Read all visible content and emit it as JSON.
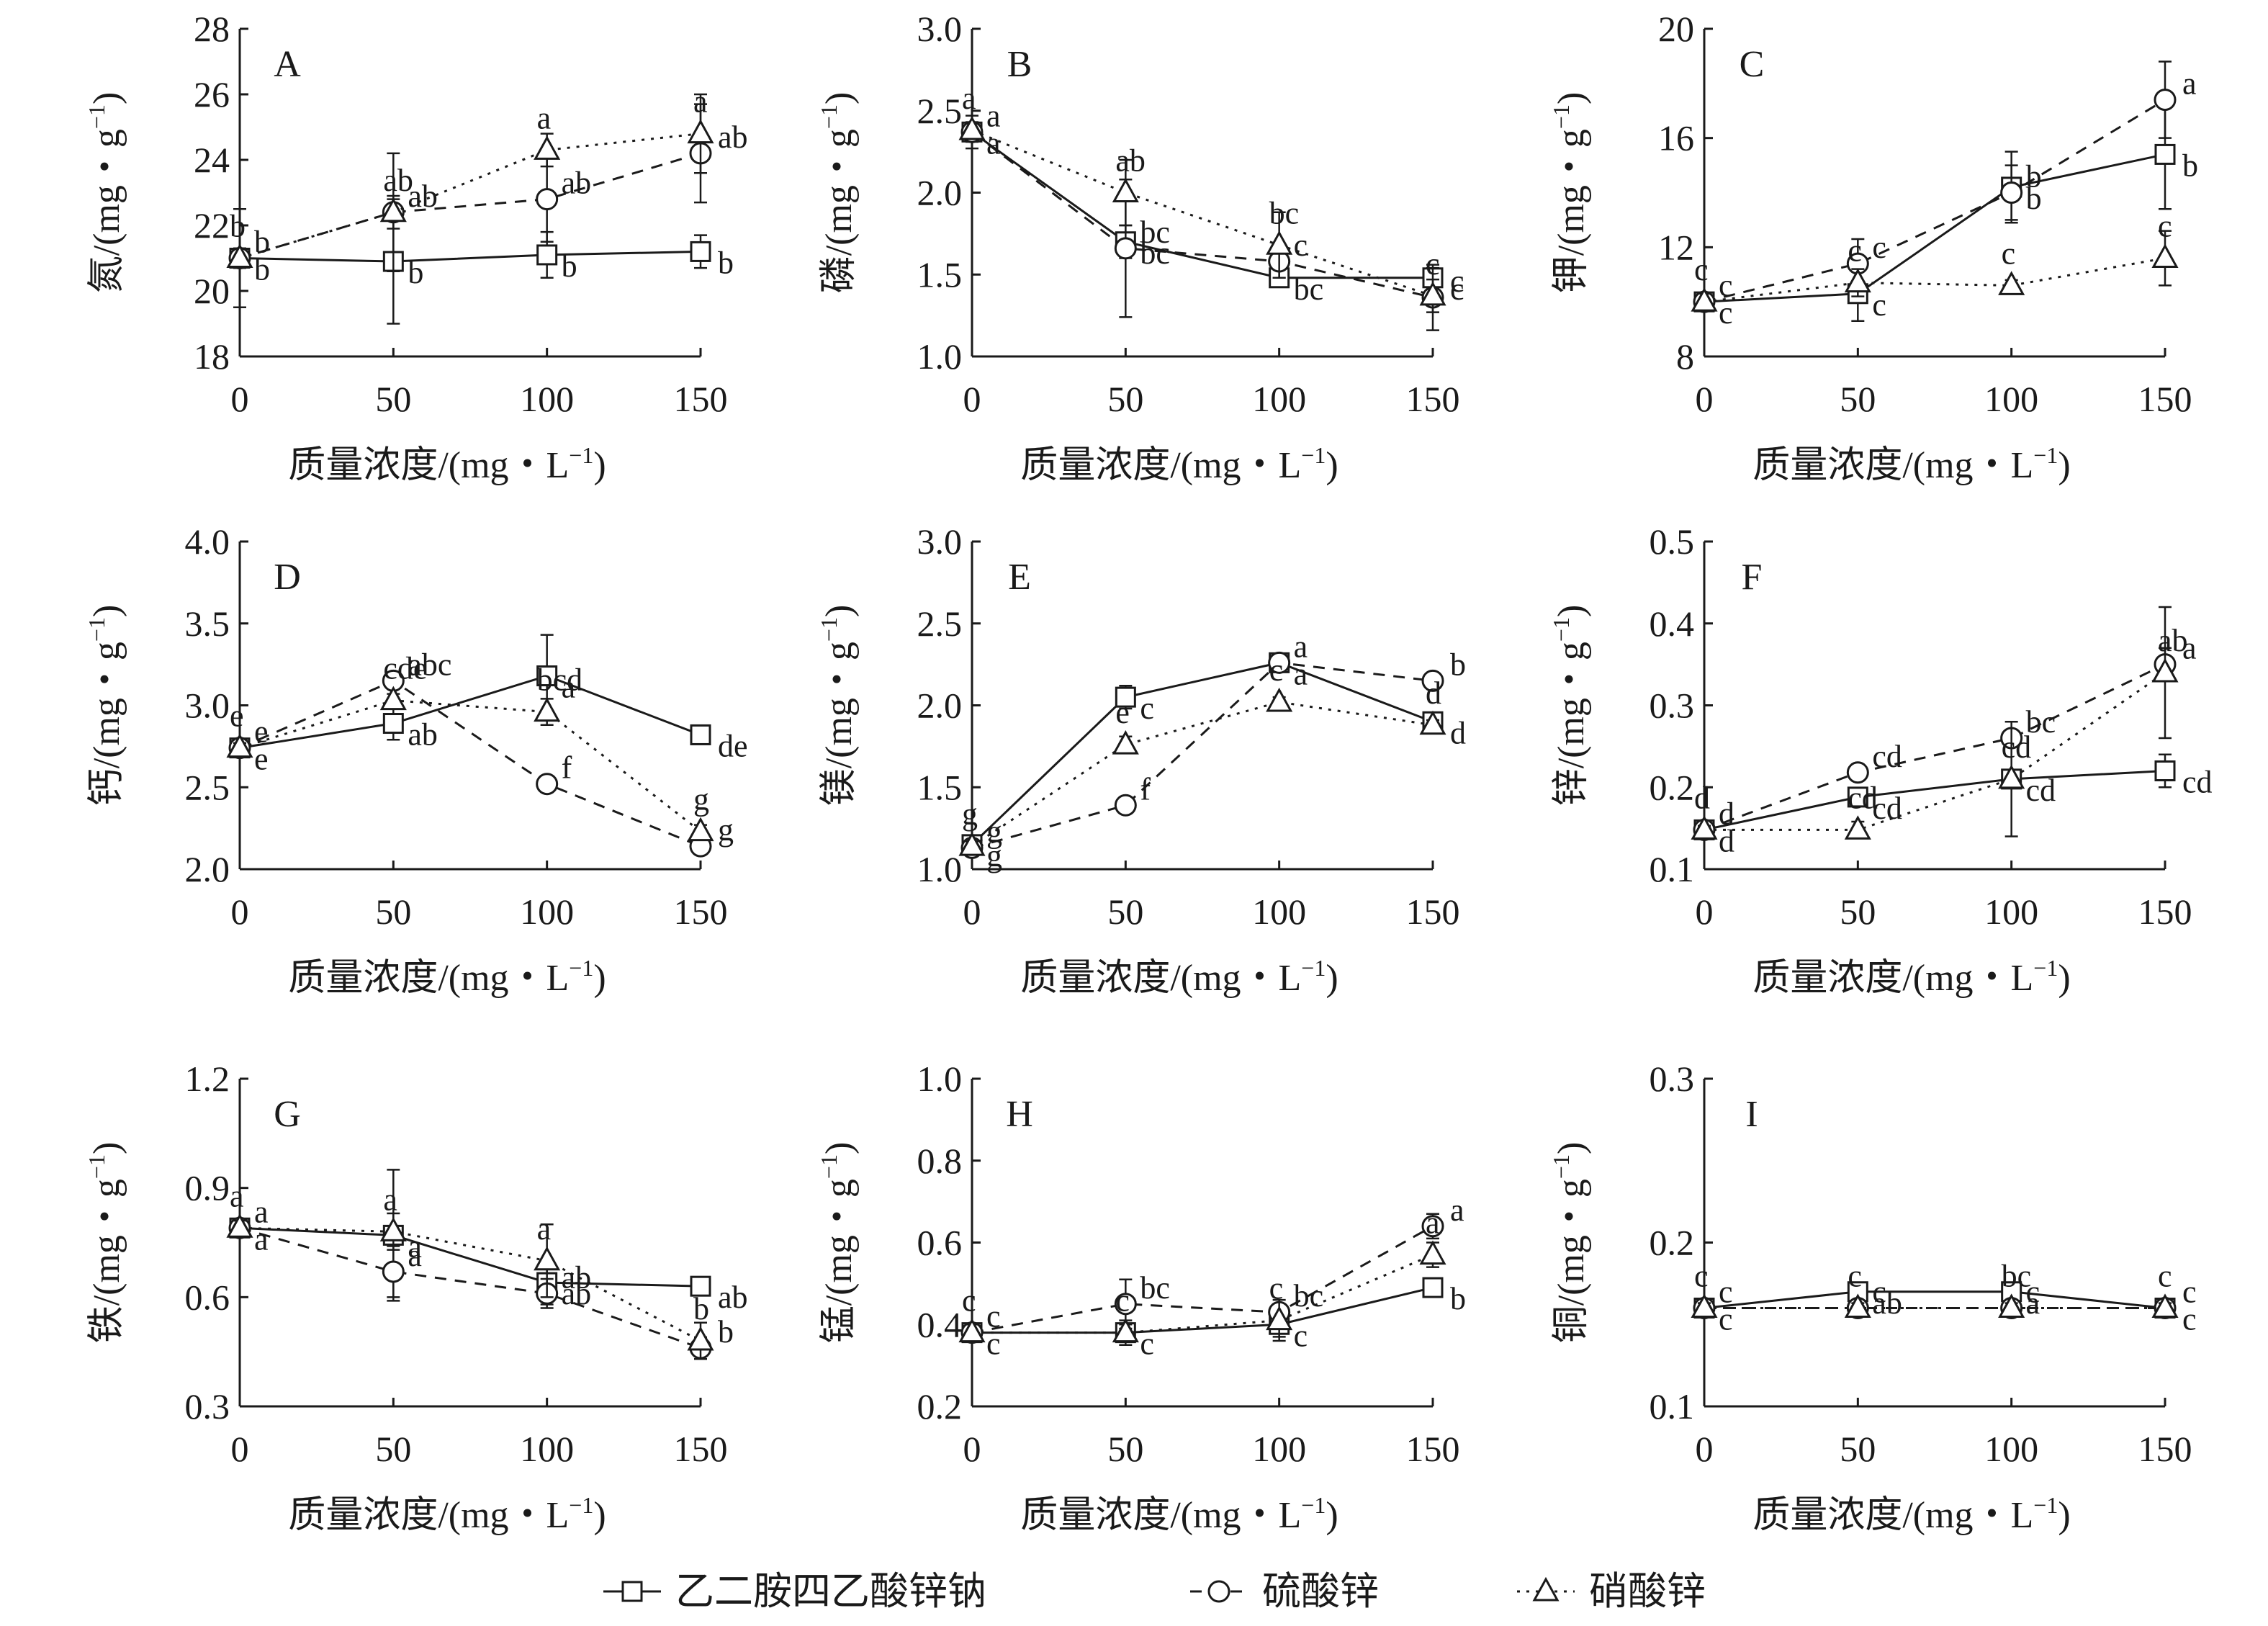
{
  "figure_title": "",
  "legend": {
    "items": [
      {
        "name": "乙二胺四乙酸锌钠",
        "marker": "square",
        "dash": "solid"
      },
      {
        "name": "硫酸锌",
        "marker": "circle",
        "dash": "dashed"
      },
      {
        "name": "硝酸锌",
        "marker": "triangle",
        "dash": "dotted"
      }
    ]
  },
  "colors": {
    "ink": "#1a1a1a",
    "marker_fill": "#ffffff"
  },
  "chart_data": [
    {
      "type": "line",
      "panel": "A",
      "ylabel": "氮/(mg・g⁻¹)",
      "xlabel": "质量浓度/(mg・L⁻¹)",
      "x": [
        0,
        50,
        100,
        150
      ],
      "ylim": [
        18,
        28
      ],
      "yticks": [
        "18",
        "20",
        "22",
        "24",
        "26",
        "28"
      ],
      "xticks": [
        "0",
        "50",
        "100",
        "150"
      ],
      "series": [
        {
          "name": "乙二胺四乙酸锌钠",
          "values": [
            21.0,
            20.9,
            21.1,
            21.2
          ],
          "errors": [
            1.5,
            1.9,
            0.7,
            0.5
          ],
          "letters": [
            "b",
            "b",
            "b",
            "b"
          ]
        },
        {
          "name": "硫酸锌",
          "values": [
            21.0,
            22.4,
            22.8,
            24.2
          ],
          "errors": [
            0.3,
            0.5,
            1.3,
            1.5
          ],
          "letters": [
            "b",
            "ab",
            "ab",
            "ab"
          ]
        },
        {
          "name": "硝酸锌",
          "values": [
            21.0,
            22.4,
            24.3,
            24.8
          ],
          "errors": [
            0.3,
            1.8,
            0.5,
            1.2
          ],
          "letters": [
            "b",
            "ab",
            "a",
            "a"
          ]
        }
      ]
    },
    {
      "type": "line",
      "panel": "B",
      "ylabel": "磷/(mg・g⁻¹)",
      "xlabel": "质量浓度/(mg・L⁻¹)",
      "x": [
        0,
        50,
        100,
        150
      ],
      "ylim": [
        1.0,
        3.0
      ],
      "yticks": [
        "1.0",
        "1.5",
        "2.0",
        "2.5",
        "3.0"
      ],
      "xticks": [
        "0",
        "50",
        "100",
        "150"
      ],
      "series": [
        {
          "name": "乙二胺四乙酸锌钠",
          "values": [
            2.37,
            1.7,
            1.48,
            1.48
          ],
          "errors": [
            0.1,
            0.1,
            0.05,
            0.06
          ],
          "letters": [
            "a",
            "bc",
            "bc",
            "c"
          ]
        },
        {
          "name": "硫酸锌",
          "values": [
            2.37,
            1.66,
            1.58,
            1.36
          ],
          "errors": [
            0.06,
            0.42,
            0.1,
            0.2
          ],
          "letters": [
            "a",
            "bc",
            "c",
            "c"
          ]
        },
        {
          "name": "硝酸锌",
          "values": [
            2.38,
            2.0,
            1.68,
            1.37
          ],
          "errors": [
            0.05,
            0.2,
            0.2,
            0.1
          ],
          "letters": [
            "a",
            "ab",
            "bc",
            "c"
          ]
        }
      ]
    },
    {
      "type": "line",
      "panel": "C",
      "ylabel": "钾/(mg・g⁻¹)",
      "xlabel": "质量浓度/(mg・L⁻¹)",
      "x": [
        0,
        50,
        100,
        150
      ],
      "ylim": [
        8,
        20
      ],
      "yticks": [
        "8",
        "12",
        "16",
        "20"
      ],
      "xticks": [
        "0",
        "50",
        "100",
        "150"
      ],
      "series": [
        {
          "name": "乙二胺四乙酸锌钠",
          "values": [
            10.0,
            10.3,
            14.2,
            15.4
          ],
          "errors": [
            0.3,
            1.0,
            1.3,
            2.0
          ],
          "letters": [
            "c",
            "c",
            "b",
            "b"
          ]
        },
        {
          "name": "硫酸锌",
          "values": [
            10.0,
            11.4,
            14.0,
            17.4
          ],
          "errors": [
            0.3,
            0.9,
            1.0,
            1.4
          ],
          "letters": [
            "c",
            "c",
            "b",
            "a"
          ]
        },
        {
          "name": "硝酸锌",
          "values": [
            10.0,
            10.7,
            10.6,
            11.6
          ],
          "errors": [
            0.3,
            0.5,
            0.2,
            1.0
          ],
          "letters": [
            "c",
            "c",
            "c",
            "c"
          ]
        }
      ]
    },
    {
      "type": "line",
      "panel": "D",
      "ylabel": "钙/(mg・g⁻¹)",
      "xlabel": "质量浓度/(mg・L⁻¹)",
      "x": [
        0,
        50,
        100,
        150
      ],
      "ylim": [
        2.0,
        4.0
      ],
      "yticks": [
        "2.0",
        "2.5",
        "3.0",
        "3.5",
        "4.0"
      ],
      "xticks": [
        "0",
        "50",
        "100",
        "150"
      ],
      "series": [
        {
          "name": "乙二胺四乙酸锌钠",
          "values": [
            2.74,
            2.89,
            3.18,
            2.82
          ],
          "errors": [
            0.03,
            0.1,
            0.25,
            0.03
          ],
          "letters": [
            "e",
            "ab",
            "a",
            "de"
          ]
        },
        {
          "name": "硫酸锌",
          "values": [
            2.74,
            3.15,
            2.52,
            2.14
          ],
          "errors": [
            0.03,
            0.04,
            0.04,
            0.03
          ],
          "letters": [
            "e",
            "abc",
            "f",
            "g"
          ]
        },
        {
          "name": "硝酸锌",
          "values": [
            2.74,
            3.03,
            2.96,
            2.23
          ],
          "errors": [
            0.03,
            0.04,
            0.08,
            0.04
          ],
          "letters": [
            "e",
            "cde",
            "bcd",
            "g"
          ]
        }
      ]
    },
    {
      "type": "line",
      "panel": "E",
      "ylabel": "镁/(mg・g⁻¹)",
      "xlabel": "质量浓度/(mg・L⁻¹)",
      "x": [
        0,
        50,
        100,
        150
      ],
      "ylim": [
        1.0,
        3.0
      ],
      "yticks": [
        "1.0",
        "1.5",
        "2.0",
        "2.5",
        "3.0"
      ],
      "xticks": [
        "0",
        "50",
        "100",
        "150"
      ],
      "series": [
        {
          "name": "乙二胺四乙酸锌钠",
          "values": [
            1.15,
            2.05,
            2.26,
            1.9
          ],
          "errors": [
            0.03,
            0.07,
            0.03,
            0.04
          ],
          "letters": [
            "g",
            "c",
            "a",
            "d"
          ]
        },
        {
          "name": "硫酸锌",
          "values": [
            1.13,
            1.39,
            2.26,
            2.15
          ],
          "errors": [
            0.03,
            0.03,
            0.03,
            0.03
          ],
          "letters": [
            "g",
            "f",
            "a",
            "b"
          ]
        },
        {
          "name": "硝酸锌",
          "values": [
            1.14,
            1.76,
            2.02,
            1.88
          ],
          "errors": [
            0.03,
            0.05,
            0.03,
            0.03
          ],
          "letters": [
            "g",
            "e",
            "c",
            "d"
          ]
        }
      ]
    },
    {
      "type": "line",
      "panel": "F",
      "ylabel": "锌/(mg・g⁻¹)",
      "xlabel": "质量浓度/(mg・L⁻¹)",
      "x": [
        0,
        50,
        100,
        150
      ],
      "ylim": [
        0.1,
        0.5
      ],
      "yticks": [
        "0.1",
        "0.2",
        "0.3",
        "0.4",
        "0.5"
      ],
      "xticks": [
        "0",
        "50",
        "100",
        "150"
      ],
      "series": [
        {
          "name": "乙二胺四乙酸锌钠",
          "values": [
            0.148,
            0.188,
            0.21,
            0.22
          ],
          "errors": [
            0.005,
            0.01,
            0.01,
            0.02
          ],
          "letters": [
            "d",
            "cd",
            "cd",
            "cd"
          ]
        },
        {
          "name": "硫酸锌",
          "values": [
            0.148,
            0.218,
            0.26,
            0.35
          ],
          "errors": [
            0.005,
            0.01,
            0.01,
            0.02
          ],
          "letters": [
            "d",
            "cd",
            "bc",
            "a"
          ]
        },
        {
          "name": "硝酸锌",
          "values": [
            0.148,
            0.148,
            0.21,
            0.34
          ],
          "errors": [
            0.005,
            0.01,
            0.07,
            0.08
          ],
          "letters": [
            "d",
            "cd",
            "cd",
            "ab"
          ]
        }
      ]
    },
    {
      "type": "line",
      "panel": "G",
      "ylabel": "铁/(mg・g⁻¹)",
      "xlabel": "质量浓度/(mg・L⁻¹)",
      "x": [
        0,
        50,
        100,
        150
      ],
      "ylim": [
        0.3,
        1.2
      ],
      "yticks": [
        "0.3",
        "0.6",
        "0.9",
        "1.2"
      ],
      "xticks": [
        "0",
        "50",
        "100",
        "150"
      ],
      "series": [
        {
          "name": "乙二胺四乙酸锌钠",
          "values": [
            0.79,
            0.77,
            0.64,
            0.63
          ],
          "errors": [
            0.02,
            0.18,
            0.06,
            0.02
          ],
          "letters": [
            "a",
            "a",
            "ab",
            "ab"
          ]
        },
        {
          "name": "硫酸锌",
          "values": [
            0.79,
            0.67,
            0.61,
            0.46
          ],
          "errors": [
            0.02,
            0.07,
            0.04,
            0.03
          ],
          "letters": [
            "a",
            "a",
            "ab",
            "b"
          ]
        },
        {
          "name": "硝酸锌",
          "values": [
            0.79,
            0.78,
            0.7,
            0.48
          ],
          "errors": [
            0.02,
            0.05,
            0.1,
            0.05
          ],
          "letters": [
            "a",
            "a",
            "a",
            "b"
          ]
        }
      ]
    },
    {
      "type": "line",
      "panel": "H",
      "ylabel": "锰/(mg・g⁻¹)",
      "xlabel": "质量浓度/(mg・L⁻¹)",
      "x": [
        0,
        50,
        100,
        150
      ],
      "ylim": [
        0.2,
        1.0
      ],
      "yticks": [
        "0.2",
        "0.4",
        "0.6",
        "0.8",
        "1.0"
      ],
      "xticks": [
        "0",
        "50",
        "100",
        "150"
      ],
      "series": [
        {
          "name": "乙二胺四乙酸锌钠",
          "values": [
            0.38,
            0.38,
            0.4,
            0.49
          ],
          "errors": [
            0.02,
            0.03,
            0.03,
            0.02
          ],
          "letters": [
            "c",
            "c",
            "c",
            "b"
          ]
        },
        {
          "name": "硫酸锌",
          "values": [
            0.38,
            0.45,
            0.43,
            0.64
          ],
          "errors": [
            0.02,
            0.06,
            0.02,
            0.03
          ],
          "letters": [
            "c",
            "bc",
            "bc",
            "a"
          ]
        },
        {
          "name": "硝酸锌",
          "values": [
            0.38,
            0.38,
            0.41,
            0.57
          ],
          "errors": [
            0.02,
            0.02,
            0.05,
            0.03
          ],
          "letters": [
            "c",
            "c",
            "c",
            "a"
          ]
        }
      ]
    },
    {
      "type": "line",
      "panel": "I",
      "ylabel": "铜/(mg・g⁻¹)",
      "xlabel": "质量浓度/(mg・L⁻¹)",
      "x": [
        0,
        50,
        100,
        150
      ],
      "ylim": [
        0.1,
        0.3
      ],
      "yticks": [
        "0.1",
        "0.2",
        "0.3"
      ],
      "xticks": [
        "0",
        "50",
        "100",
        "150"
      ],
      "series": [
        {
          "name": "乙二胺四乙酸锌钠",
          "values": [
            0.16,
            0.17,
            0.17,
            0.16
          ],
          "errors": [
            0.003,
            0.005,
            0.003,
            0.003
          ],
          "letters": [
            "c",
            "ab",
            "a",
            "c"
          ]
        },
        {
          "name": "硫酸锌",
          "values": [
            0.16,
            0.16,
            0.16,
            0.16
          ],
          "errors": [
            0.003,
            0.003,
            0.003,
            0.003
          ],
          "letters": [
            "c",
            "c",
            "c",
            "c"
          ]
        },
        {
          "name": "硝酸锌",
          "values": [
            0.16,
            0.16,
            0.16,
            0.16
          ],
          "errors": [
            0.003,
            0.003,
            0.003,
            0.003
          ],
          "letters": [
            "c",
            "c",
            "bc",
            "c"
          ]
        }
      ]
    }
  ]
}
